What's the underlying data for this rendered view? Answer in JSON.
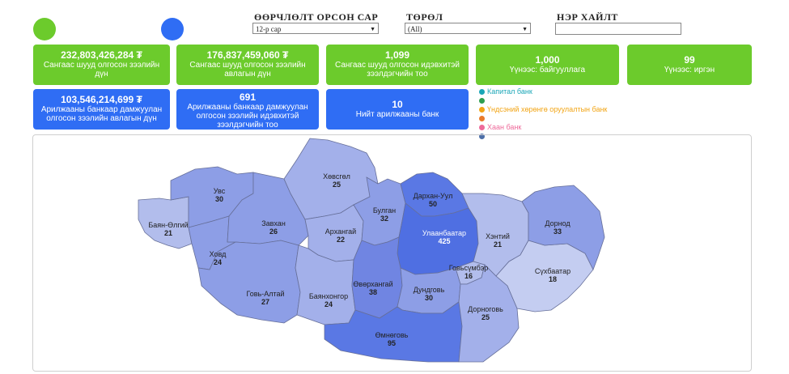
{
  "colors": {
    "green": "#6ccb2c",
    "blue": "#2f6df4"
  },
  "legend_circles": [
    {
      "color": "#6ccb2c",
      "meaning": "green"
    },
    {
      "color": "#2f6df4",
      "meaning": "blue"
    }
  ],
  "filters": {
    "month": {
      "label": "ӨӨРЧЛӨЛТ ОРСОН САР",
      "value": "12-р сар"
    },
    "type": {
      "label": "ТӨРӨЛ",
      "value": "(All)"
    },
    "name_search": {
      "label": "НЭР ХАЙЛТ",
      "value": ""
    }
  },
  "cards": [
    {
      "value": "232,803,426,284 ₮",
      "label": "Сангаас шууд олгосон зээлийн дүн",
      "color": "green"
    },
    {
      "value": "176,837,459,060 ₮",
      "label": "Сангаас шууд олгосон зээлийн авлагын дүн",
      "color": "green"
    },
    {
      "value": "1,099",
      "label": "Сангаас шууд олгосон идэвхитэй зээлдэгчийн тоо",
      "color": "green"
    },
    {
      "value": "1,000",
      "label": "Үүнээс: байгууллага",
      "color": "green"
    },
    {
      "value": "99",
      "label": "Үүнээс: иргэн",
      "color": "green"
    },
    {
      "value": "103,546,214,699 ₮",
      "label": "Арилжааны банкаар дамжуулан олгосон зээлийн авлагын дүн",
      "color": "blue"
    },
    {
      "value": "691",
      "label": "Арилжааны банкаар дамжуулан олгосон зээлийн идэвхитэй зээлдэгчийн тоо",
      "color": "blue"
    },
    {
      "value": "10",
      "label": "Нийт арилжааны банк",
      "color": "blue"
    }
  ],
  "bank_legend": [
    {
      "name": "Капитал банк",
      "color": "#1aa6b7"
    },
    {
      "name": "",
      "color": "#2e9e4f"
    },
    {
      "name": "Үндсэний хөрөнгө оруулалтын банк",
      "color": "#f2a516"
    },
    {
      "name": "",
      "color": "#ea7a2a"
    },
    {
      "name": "Хаан банк",
      "color": "#ee6a9a"
    },
    {
      "name": "",
      "color": "#4d6fa8"
    }
  ],
  "map": {
    "regions": [
      {
        "name": "Баян-Өлгий",
        "value": "21"
      },
      {
        "name": "Увс",
        "value": "30"
      },
      {
        "name": "Ховд",
        "value": "24"
      },
      {
        "name": "Завхан",
        "value": "26"
      },
      {
        "name": "Говь-Алтай",
        "value": "27"
      },
      {
        "name": "Хөвсгөл",
        "value": "25"
      },
      {
        "name": "Архангай",
        "value": "22"
      },
      {
        "name": "Баянхонгор",
        "value": "24"
      },
      {
        "name": "Булган",
        "value": "32"
      },
      {
        "name": "Дархан-Уул",
        "value": "50"
      },
      {
        "name": "Улаанбаатар",
        "value": "425"
      },
      {
        "name": "Өвөрхангай",
        "value": "38"
      },
      {
        "name": "Дундговь",
        "value": "30"
      },
      {
        "name": "Өмнөговь",
        "value": "95"
      },
      {
        "name": "Говьсүмбэр",
        "value": "16"
      },
      {
        "name": "Хэнтий",
        "value": "21"
      },
      {
        "name": "Дорнод",
        "value": "33"
      },
      {
        "name": "Сүхбаатар",
        "value": "18"
      },
      {
        "name": "Дорноговь",
        "value": "25"
      }
    ]
  }
}
